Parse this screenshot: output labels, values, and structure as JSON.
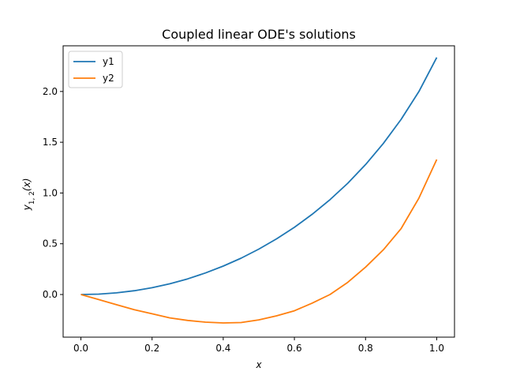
{
  "chart_data": {
    "type": "line",
    "title": "Coupled linear ODE's solutions",
    "xlabel": "x",
    "ylabel": "y",
    "ylabel_sub": "1, 2",
    "ylabel_arg": "(x)",
    "xlim": [
      -0.05,
      1.05
    ],
    "ylim": [
      -0.42,
      2.45
    ],
    "xticks": [
      0.0,
      0.2,
      0.4,
      0.6,
      0.8,
      1.0
    ],
    "xtick_labels": [
      "0.0",
      "0.2",
      "0.4",
      "0.6",
      "0.8",
      "1.0"
    ],
    "yticks": [
      0.0,
      0.5,
      1.0,
      1.5,
      2.0
    ],
    "ytick_labels": [
      "0.0",
      "0.5",
      "1.0",
      "1.5",
      "2.0"
    ],
    "grid": false,
    "legend_position": "top-left",
    "series": [
      {
        "name": "y1",
        "color": "#1f77b4",
        "x": [
          0.0,
          0.05,
          0.1,
          0.15,
          0.2,
          0.25,
          0.3,
          0.35,
          0.4,
          0.45,
          0.5,
          0.55,
          0.6,
          0.65,
          0.7,
          0.75,
          0.8,
          0.85,
          0.9,
          0.95,
          1.0
        ],
        "y": [
          0.0,
          0.004,
          0.016,
          0.037,
          0.067,
          0.106,
          0.154,
          0.212,
          0.28,
          0.358,
          0.447,
          0.548,
          0.662,
          0.79,
          0.934,
          1.096,
          1.28,
          1.488,
          1.726,
          2.0,
          2.335
        ]
      },
      {
        "name": "y2",
        "color": "#ff7f0e",
        "x": [
          0.0,
          0.05,
          0.1,
          0.15,
          0.2,
          0.25,
          0.3,
          0.35,
          0.4,
          0.45,
          0.5,
          0.55,
          0.6,
          0.65,
          0.7,
          0.75,
          0.8,
          0.85,
          0.9,
          0.95,
          1.0
        ],
        "y": [
          0.0,
          -0.05,
          -0.1,
          -0.15,
          -0.19,
          -0.23,
          -0.255,
          -0.272,
          -0.28,
          -0.276,
          -0.25,
          -0.21,
          -0.16,
          -0.085,
          0.0,
          0.12,
          0.27,
          0.44,
          0.65,
          0.95,
          1.33
        ]
      }
    ]
  }
}
